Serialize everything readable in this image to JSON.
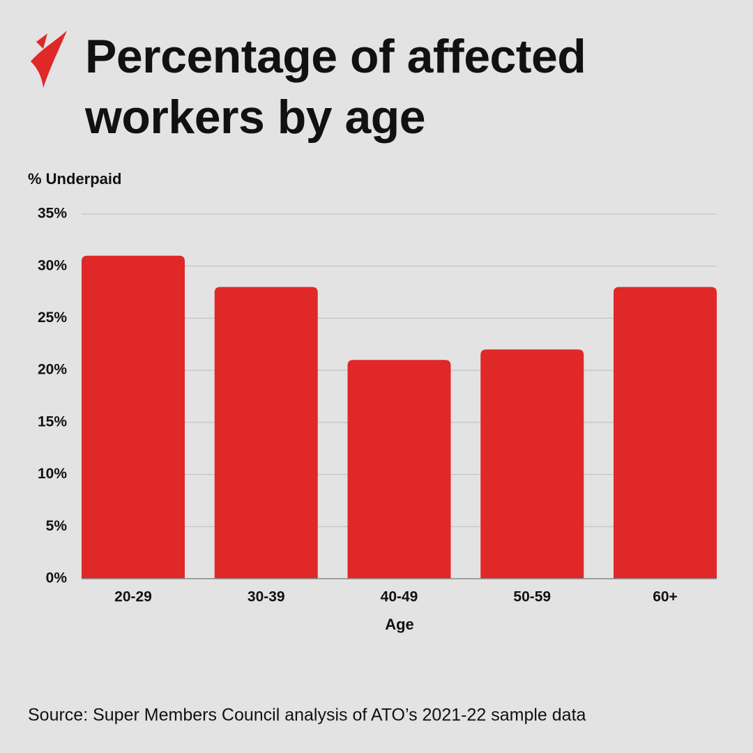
{
  "chart_data": {
    "type": "bar",
    "title": "Percentage of affected workers by age",
    "y_axis_label": "% Underpaid",
    "x_axis_label": "Age",
    "source": "Source: Super Members Council analysis of ATO’s 2021-22 sample data",
    "categories": [
      "20-29",
      "30-39",
      "40-49",
      "50-59",
      "60+"
    ],
    "values": [
      31,
      28,
      21,
      22,
      28
    ],
    "color": "#e02828",
    "ylim": [
      0,
      35
    ],
    "yticks": [
      {
        "value": 0,
        "label": "0%"
      },
      {
        "value": 5,
        "label": "5%"
      },
      {
        "value": 10,
        "label": "10%"
      },
      {
        "value": 15,
        "label": "15%"
      },
      {
        "value": 20,
        "label": "20%"
      },
      {
        "value": 25,
        "label": "25%"
      },
      {
        "value": 30,
        "label": "30%"
      },
      {
        "value": 35,
        "label": "35%"
      }
    ],
    "grid": true
  }
}
